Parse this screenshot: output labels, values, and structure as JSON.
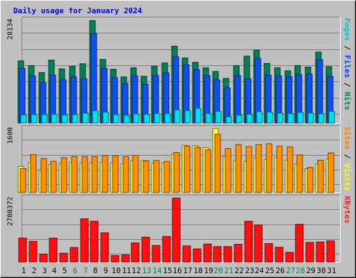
{
  "chart_data": [
    {
      "type": "bar",
      "title": "Daily usage for January 2024",
      "panel": "pages-files-hits",
      "y_max_label": "28134",
      "ylim": [
        0,
        28134
      ],
      "right_label": {
        "parts": [
          "Pages",
          "Files",
          "Hits"
        ],
        "separator": " / ",
        "colors": [
          "#00c8c8",
          "#0040ff",
          "#00805a"
        ]
      },
      "categories": [
        "1",
        "2",
        "3",
        "4",
        "5",
        "6",
        "7",
        "8",
        "9",
        "10",
        "11",
        "12",
        "13",
        "14",
        "15",
        "16",
        "17",
        "18",
        "19",
        "20",
        "21",
        "22",
        "23",
        "24",
        "25",
        "26",
        "27",
        "28",
        "29",
        "30",
        "31"
      ],
      "weekend_categories": [
        "6",
        "7",
        "13",
        "14",
        "20",
        "21",
        "27",
        "28"
      ],
      "series": [
        {
          "name": "Hits",
          "color": "#00805a",
          "values": [
            17000,
            15700,
            13800,
            17200,
            14800,
            15500,
            16200,
            28000,
            17400,
            14700,
            12600,
            15100,
            12800,
            15500,
            16400,
            21000,
            17800,
            16600,
            15100,
            14100,
            12200,
            15700,
            18300,
            19900,
            16300,
            15100,
            14300,
            15700,
            15300,
            19400,
            15400
          ]
        },
        {
          "name": "Files",
          "color": "#1050f0",
          "values": [
            14900,
            12900,
            11000,
            13100,
            11800,
            12600,
            12100,
            24500,
            14900,
            12400,
            10800,
            12900,
            10600,
            13000,
            13700,
            18100,
            15900,
            14600,
            13000,
            11800,
            9600,
            13000,
            12100,
            17700,
            13100,
            12900,
            12700,
            13300,
            13400,
            17300,
            12700
          ]
        },
        {
          "name": "Pages",
          "color": "#00e0f0",
          "values": [
            2200,
            2300,
            2300,
            2400,
            2200,
            2300,
            2700,
            3400,
            3000,
            2300,
            2100,
            2500,
            2400,
            2600,
            2600,
            3600,
            3400,
            4000,
            2600,
            3200,
            1700,
            2100,
            2400,
            3100,
            3000,
            2700,
            2600,
            2900,
            2700,
            2500,
            3200
          ]
        }
      ]
    },
    {
      "type": "bar",
      "panel": "visits-sites",
      "y_max_label": "1600",
      "ylim": [
        0,
        1600
      ],
      "right_label": {
        "parts": [
          "Sites",
          "Visits"
        ],
        "separator": " / ",
        "colors": [
          "#ff8000",
          "#ffff00"
        ]
      },
      "categories": [
        "1",
        "2",
        "3",
        "4",
        "5",
        "6",
        "7",
        "8",
        "9",
        "10",
        "11",
        "12",
        "13",
        "14",
        "15",
        "16",
        "17",
        "18",
        "19",
        "20",
        "21",
        "22",
        "23",
        "24",
        "25",
        "26",
        "27",
        "28",
        "29",
        "30",
        "31"
      ],
      "series": [
        {
          "name": "Visits",
          "color": "#ffff40",
          "values": [
            650,
            750,
            560,
            700,
            710,
            750,
            740,
            740,
            760,
            740,
            720,
            800,
            800,
            720,
            740,
            960,
            1180,
            1170,
            1120,
            1600,
            900,
            800,
            780,
            870,
            830,
            880,
            810,
            720,
            600,
            710,
            840
          ]
        },
        {
          "name": "Sites",
          "color": "#ff9000",
          "values": [
            600,
            950,
            850,
            780,
            870,
            900,
            900,
            900,
            920,
            920,
            900,
            930,
            790,
            800,
            780,
            1000,
            1160,
            1130,
            1070,
            1460,
            1100,
            1200,
            1150,
            1200,
            1220,
            1160,
            1140,
            940,
            630,
            810,
            990
          ]
        }
      ]
    },
    {
      "type": "bar",
      "panel": "kbytes",
      "y_max_label": "2780372",
      "ylim": [
        0,
        2780372
      ],
      "right_label": {
        "parts": [
          "KBytes"
        ],
        "separator": "",
        "colors": [
          "#ff2020"
        ]
      },
      "categories": [
        "1",
        "2",
        "3",
        "4",
        "5",
        "6",
        "7",
        "8",
        "9",
        "10",
        "11",
        "12",
        "13",
        "14",
        "15",
        "16",
        "17",
        "18",
        "19",
        "20",
        "21",
        "22",
        "23",
        "24",
        "25",
        "26",
        "27",
        "28",
        "29",
        "30",
        "31"
      ],
      "series": [
        {
          "name": "KBytes",
          "color": "#ff1010",
          "values": [
            1040000,
            900000,
            340000,
            1040000,
            380000,
            630000,
            1880000,
            1770000,
            1270000,
            280000,
            310000,
            830000,
            1080000,
            720000,
            1110000,
            2780000,
            700000,
            570000,
            780000,
            670000,
            670000,
            770000,
            1770000,
            1610000,
            800000,
            640000,
            420000,
            1640000,
            850000,
            870000,
            920000
          ]
        }
      ]
    }
  ]
}
